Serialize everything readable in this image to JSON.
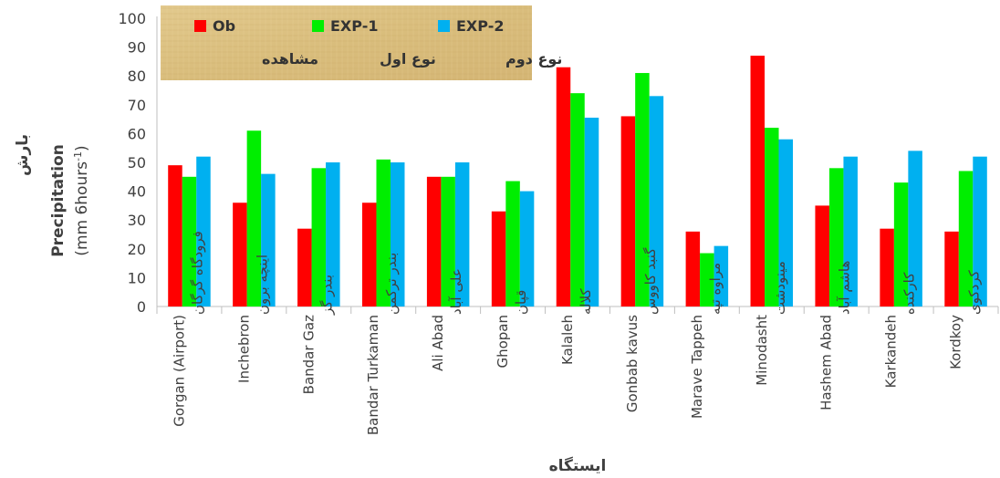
{
  "chart_data": {
    "type": "bar",
    "categories": [
      {
        "en": "Gorgan (Airport)",
        "fa": "فرودگاه گرگان"
      },
      {
        "en": "Inchebron",
        "fa": "اینچه برون"
      },
      {
        "en": "Bandar Gaz",
        "fa": "بندر گز"
      },
      {
        "en": "Bandar Turkaman",
        "fa": "بندر ترکمن"
      },
      {
        "en": "Ali Abad",
        "fa": "علی آباد"
      },
      {
        "en": "Ghopan",
        "fa": "قپان"
      },
      {
        "en": "Kalaleh",
        "fa": "کلاله"
      },
      {
        "en": "Gonbab kavus",
        "fa": "گنبد کاووس"
      },
      {
        "en": "Marave Tappeh",
        "fa": "مراوه تپه"
      },
      {
        "en": "Minodasht",
        "fa": "مینودشت"
      },
      {
        "en": "Hashem Abad",
        "fa": "هاشم آباد"
      },
      {
        "en": "Karkandeh",
        "fa": "کارکنده"
      },
      {
        "en": "Kordkoy",
        "fa": "کردکوی"
      }
    ],
    "series": [
      {
        "name": "Ob",
        "name_fa": "مشاهده",
        "color": "#ff0000",
        "values": [
          49,
          36,
          27,
          36,
          45,
          33,
          83,
          66,
          26,
          87,
          35,
          27,
          26
        ]
      },
      {
        "name": "EXP-1",
        "name_fa": "نوع اول",
        "color": "#00ee00",
        "values": [
          45,
          61,
          48,
          51,
          45,
          43.5,
          74,
          81,
          18.5,
          62,
          48,
          43,
          47
        ]
      },
      {
        "name": "EXP-2",
        "name_fa": "نوع دوم",
        "color": "#00b0f0",
        "values": [
          52,
          46,
          50,
          50,
          50,
          40,
          65.5,
          73,
          21,
          58,
          52,
          54,
          52
        ]
      }
    ],
    "ylim": [
      0,
      100
    ],
    "yticks": [
      0,
      10,
      20,
      30,
      40,
      50,
      60,
      70,
      80,
      90,
      100
    ],
    "ylabel": {
      "fa": "بارش",
      "line1": "Precipitation",
      "line2_prefix": "(mm 6hours",
      "line2_sup": "-1",
      "line2_suffix": ")"
    },
    "xlabel": "ایستگاه",
    "grid": false,
    "legend_position": "top-left"
  }
}
